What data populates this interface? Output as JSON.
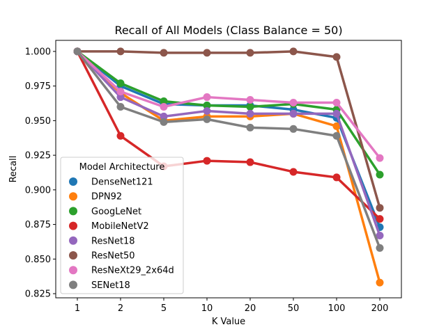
{
  "chart_data": {
    "type": "line",
    "title": "Recall of All Models (Class Balance = 50)",
    "xlabel": "K Value",
    "ylabel": "Recall",
    "categories": [
      "1",
      "2",
      "5",
      "10",
      "20",
      "50",
      "100",
      "200"
    ],
    "ylim": [
      0.822,
      1.008
    ],
    "yticks": [
      "0.825",
      "0.850",
      "0.875",
      "0.900",
      "0.925",
      "0.950",
      "0.975",
      "1.000"
    ],
    "grid": false,
    "legend": {
      "title": "Model Architecture",
      "placement": "lower-left"
    },
    "series": [
      {
        "name": "DenseNet121",
        "color": "#1f77b4",
        "values": [
          1.0,
          0.975,
          0.962,
          0.961,
          0.961,
          0.958,
          0.952,
          0.873
        ]
      },
      {
        "name": "DPN92",
        "color": "#ff7f0e",
        "values": [
          1.0,
          0.97,
          0.95,
          0.953,
          0.953,
          0.955,
          0.946,
          0.833
        ]
      },
      {
        "name": "GoogLeNet",
        "color": "#2ca02c",
        "values": [
          1.0,
          0.977,
          0.964,
          0.961,
          0.96,
          0.962,
          0.958,
          0.911
        ]
      },
      {
        "name": "MobileNetV2",
        "color": "#d62728",
        "values": [
          1.0,
          0.939,
          0.917,
          0.921,
          0.92,
          0.913,
          0.909,
          0.879
        ]
      },
      {
        "name": "ResNet18",
        "color": "#9467bd",
        "values": [
          1.0,
          0.967,
          0.953,
          0.957,
          0.955,
          0.955,
          0.955,
          0.867
        ]
      },
      {
        "name": "ResNet50",
        "color": "#8c564b",
        "values": [
          1.0,
          1.0,
          0.999,
          0.999,
          0.999,
          1.0,
          0.996,
          0.887
        ]
      },
      {
        "name": "ResNeXt29_2x64d",
        "color": "#e377c2",
        "values": [
          1.0,
          0.971,
          0.96,
          0.967,
          0.965,
          0.963,
          0.963,
          0.923
        ]
      },
      {
        "name": "SENet18",
        "color": "#7f7f7f",
        "values": [
          1.0,
          0.96,
          0.949,
          0.951,
          0.945,
          0.944,
          0.939,
          0.858
        ]
      }
    ]
  }
}
